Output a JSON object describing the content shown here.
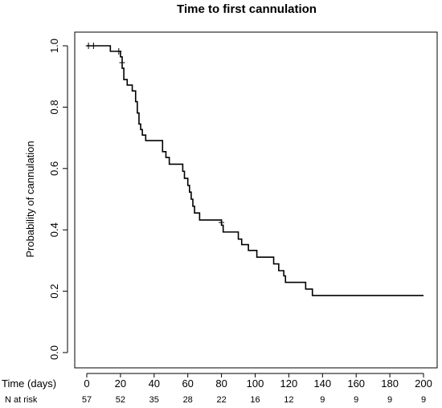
{
  "chart_data": {
    "type": "line",
    "title": "Time to first cannulation",
    "ylabel": "Probability of cannulation",
    "xlabel": "Time (days)",
    "xlim": [
      0,
      200
    ],
    "ylim": [
      0,
      1
    ],
    "x_ticks": [
      0,
      20,
      40,
      60,
      80,
      100,
      120,
      140,
      160,
      180,
      200
    ],
    "y_ticks": [
      "0.0",
      "0.2",
      "0.4",
      "0.6",
      "0.8",
      "1.0"
    ],
    "grid": false,
    "risk_table": {
      "label": "N at risk",
      "times": [
        0,
        20,
        40,
        60,
        80,
        100,
        120,
        140,
        160,
        180,
        200
      ],
      "counts": [
        "57",
        "52",
        "35",
        "28",
        "22",
        "16",
        "12",
        "9",
        "9",
        "9",
        "9"
      ]
    },
    "series": [
      {
        "step_points": [
          [
            0,
            1.0
          ],
          [
            14,
            1.0
          ],
          [
            14,
            0.982
          ],
          [
            20,
            0.982
          ],
          [
            20,
            0.964
          ],
          [
            21,
            0.964
          ],
          [
            21,
            0.927
          ],
          [
            22,
            0.927
          ],
          [
            22,
            0.89
          ],
          [
            24,
            0.89
          ],
          [
            24,
            0.872
          ],
          [
            27,
            0.872
          ],
          [
            27,
            0.853
          ],
          [
            29,
            0.853
          ],
          [
            29,
            0.818
          ],
          [
            30,
            0.818
          ],
          [
            30,
            0.781
          ],
          [
            31,
            0.781
          ],
          [
            31,
            0.745
          ],
          [
            32,
            0.745
          ],
          [
            32,
            0.727
          ],
          [
            33,
            0.727
          ],
          [
            33,
            0.709
          ],
          [
            35,
            0.709
          ],
          [
            35,
            0.691
          ],
          [
            45,
            0.691
          ],
          [
            45,
            0.655
          ],
          [
            47,
            0.655
          ],
          [
            47,
            0.636
          ],
          [
            49,
            0.636
          ],
          [
            49,
            0.614
          ],
          [
            57,
            0.614
          ],
          [
            57,
            0.591
          ],
          [
            58,
            0.591
          ],
          [
            58,
            0.568
          ],
          [
            60,
            0.568
          ],
          [
            60,
            0.545
          ],
          [
            61,
            0.545
          ],
          [
            61,
            0.523
          ],
          [
            62,
            0.523
          ],
          [
            62,
            0.5
          ],
          [
            63,
            0.5
          ],
          [
            63,
            0.477
          ],
          [
            64,
            0.477
          ],
          [
            64,
            0.455
          ],
          [
            67,
            0.455
          ],
          [
            67,
            0.432
          ],
          [
            80,
            0.432
          ],
          [
            80,
            0.415
          ],
          [
            81,
            0.415
          ],
          [
            81,
            0.393
          ],
          [
            90,
            0.393
          ],
          [
            90,
            0.37
          ],
          [
            92,
            0.37
          ],
          [
            92,
            0.352
          ],
          [
            96,
            0.352
          ],
          [
            96,
            0.333
          ],
          [
            101,
            0.333
          ],
          [
            101,
            0.311
          ],
          [
            111,
            0.311
          ],
          [
            111,
            0.289
          ],
          [
            114,
            0.289
          ],
          [
            114,
            0.267
          ],
          [
            117,
            0.267
          ],
          [
            117,
            0.25
          ],
          [
            118,
            0.25
          ],
          [
            118,
            0.229
          ],
          [
            130,
            0.229
          ],
          [
            130,
            0.207
          ],
          [
            134,
            0.207
          ],
          [
            134,
            0.186
          ],
          [
            200,
            0.186
          ]
        ],
        "censor_marks": [
          [
            1,
            1.0
          ],
          [
            4,
            1.0
          ],
          [
            19,
            0.982
          ],
          [
            21,
            0.945
          ],
          [
            80,
            0.424
          ]
        ]
      }
    ]
  }
}
